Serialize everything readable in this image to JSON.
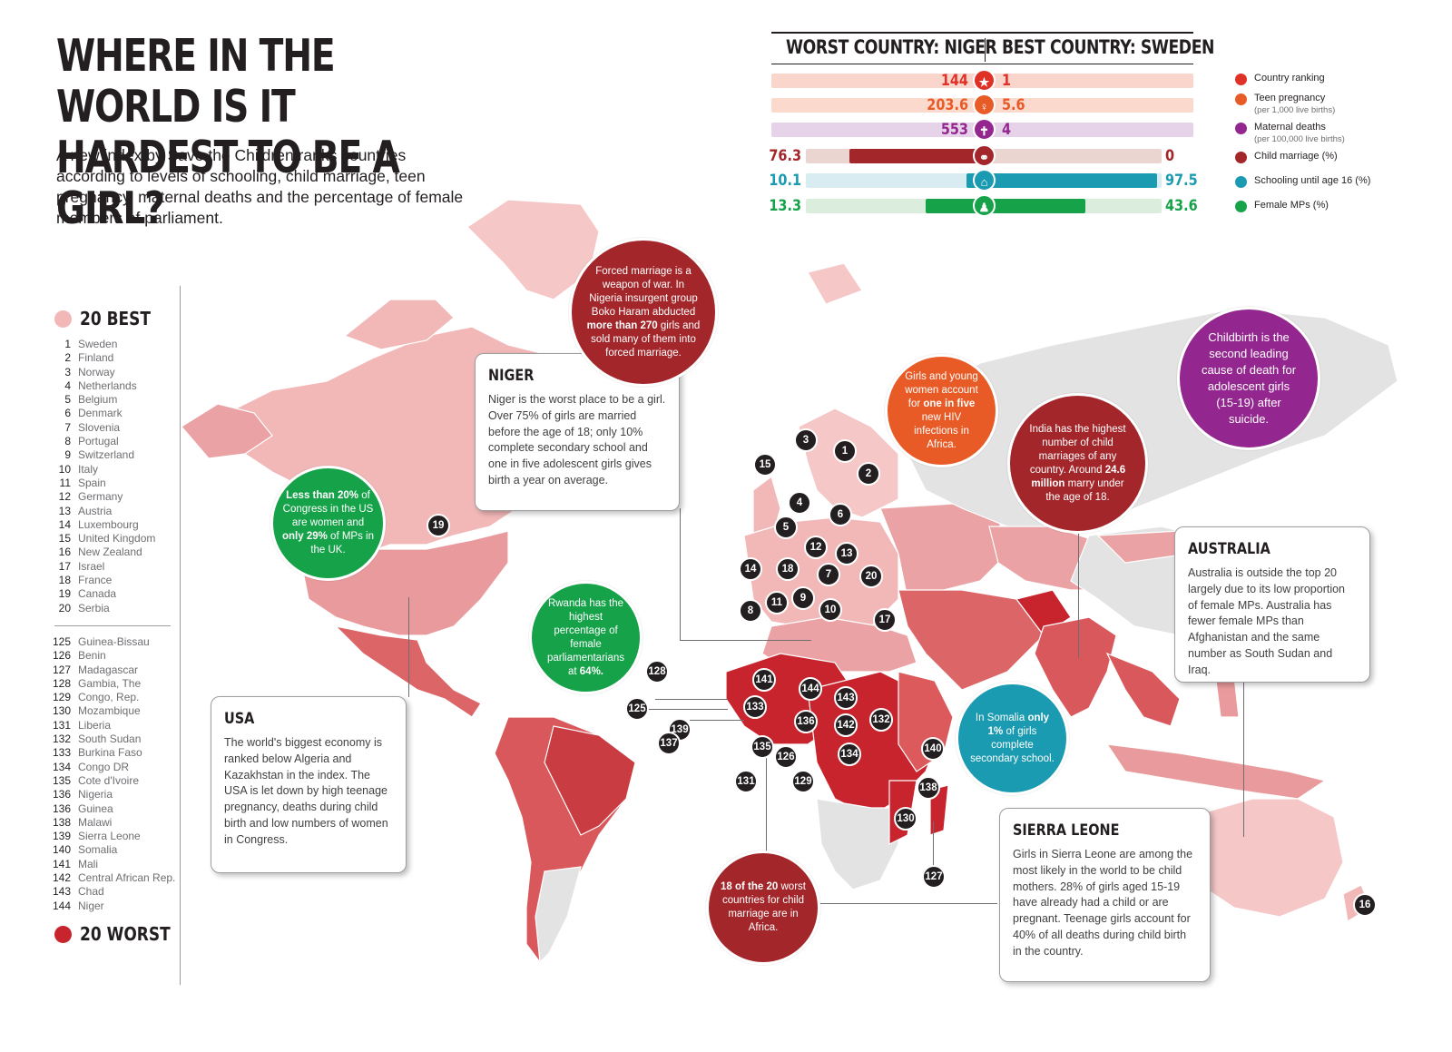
{
  "title_line1": "WHERE IN THE WORLD IS IT",
  "title_line2": "HARDEST TO BE A GIRL?",
  "intro": "A new index by Save the Children ranks countries according to levels of schooling, child marriage, teen pregnancy, maternal deaths and the percentage of female members of parliament.",
  "stats": {
    "worst_label": "WORST COUNTRY: NIGER",
    "best_label": "BEST COUNTRY: SWEDEN",
    "rows": [
      {
        "worst": "144",
        "best": "1",
        "color": "#e03127",
        "icon": "star-icon",
        "glyph": "★"
      },
      {
        "worst": "203.6",
        "best": "5.6",
        "color": "#e85b26",
        "icon": "pregnancy-icon",
        "glyph": "♀"
      },
      {
        "worst": "553",
        "best": "4",
        "color": "#93278f",
        "icon": "maternal-icon",
        "glyph": "✝"
      },
      {
        "worst": "76.3",
        "best": "0",
        "color": "#a3262a",
        "icon": "marriage-icon",
        "glyph": "⚭"
      },
      {
        "worst": "10.1",
        "best": "97.5",
        "color": "#1a9bb1",
        "icon": "school-icon",
        "glyph": "⌂"
      },
      {
        "worst": "13.3",
        "best": "43.6",
        "color": "#16a249",
        "icon": "parliament-icon",
        "glyph": "♟"
      }
    ],
    "fills": {
      "child_marriage": 76.3,
      "schooling_worst": 10.1,
      "schooling_best": 97.5,
      "mps_worst": 13.3,
      "mps_best": 43.6
    },
    "legend": [
      {
        "label": "Country ranking",
        "sub": "",
        "color": "#e03127"
      },
      {
        "label": "Teen pregnancy",
        "sub": "(per 1,000 live births)",
        "color": "#e85b26"
      },
      {
        "label": "Maternal deaths",
        "sub": "(per 100,000 live births)",
        "color": "#93278f"
      },
      {
        "label": "Child marriage (%)",
        "sub": "",
        "color": "#a3262a"
      },
      {
        "label": "Schooling until age 16 (%)",
        "sub": "",
        "color": "#1a9bb1"
      },
      {
        "label": "Female MPs (%)",
        "sub": "",
        "color": "#16a249"
      }
    ]
  },
  "best_heading": "20 BEST",
  "worst_heading": "20 WORST",
  "best_list": [
    {
      "n": "1",
      "c": "Sweden"
    },
    {
      "n": "2",
      "c": "Finland"
    },
    {
      "n": "3",
      "c": "Norway"
    },
    {
      "n": "4",
      "c": "Netherlands"
    },
    {
      "n": "5",
      "c": "Belgium"
    },
    {
      "n": "6",
      "c": "Denmark"
    },
    {
      "n": "7",
      "c": "Slovenia"
    },
    {
      "n": "8",
      "c": "Portugal"
    },
    {
      "n": "9",
      "c": "Switzerland"
    },
    {
      "n": "10",
      "c": "Italy"
    },
    {
      "n": "11",
      "c": "Spain"
    },
    {
      "n": "12",
      "c": "Germany"
    },
    {
      "n": "13",
      "c": "Austria"
    },
    {
      "n": "14",
      "c": "Luxembourg"
    },
    {
      "n": "15",
      "c": "United Kingdom"
    },
    {
      "n": "16",
      "c": "New Zealand"
    },
    {
      "n": "17",
      "c": "Israel"
    },
    {
      "n": "18",
      "c": "France"
    },
    {
      "n": "19",
      "c": "Canada"
    },
    {
      "n": "20",
      "c": "Serbia"
    }
  ],
  "worst_list": [
    {
      "n": "125",
      "c": "Guinea-Bissau"
    },
    {
      "n": "126",
      "c": "Benin"
    },
    {
      "n": "127",
      "c": "Madagascar"
    },
    {
      "n": "128",
      "c": "Gambia, The"
    },
    {
      "n": "129",
      "c": "Congo, Rep."
    },
    {
      "n": "130",
      "c": "Mozambique"
    },
    {
      "n": "131",
      "c": "Liberia"
    },
    {
      "n": "132",
      "c": "South Sudan"
    },
    {
      "n": "133",
      "c": "Burkina Faso"
    },
    {
      "n": "134",
      "c": "Congo DR"
    },
    {
      "n": "135",
      "c": "Cote d'Ivoire"
    },
    {
      "n": "136",
      "c": "Nigeria"
    },
    {
      "n": "136",
      "c": "Guinea"
    },
    {
      "n": "138",
      "c": "Malawi"
    },
    {
      "n": "139",
      "c": "Sierra Leone"
    },
    {
      "n": "140",
      "c": "Somalia"
    },
    {
      "n": "141",
      "c": "Mali"
    },
    {
      "n": "142",
      "c": "Central African Rep."
    },
    {
      "n": "143",
      "c": "Chad"
    },
    {
      "n": "144",
      "c": "Niger"
    }
  ],
  "boxes": {
    "niger": {
      "title": "NIGER",
      "text": "Niger is the worst place to be a girl. Over 75% of girls are married before the age of 18; only 10% complete secondary school and one in five adolescent girls gives birth a year on average."
    },
    "usa": {
      "title": "USA",
      "text": "The world's biggest economy is ranked below Algeria and Kazakhstan in the index. The USA is let down by high teenage pregnancy, deaths during child birth and low numbers of women in Congress."
    },
    "australia": {
      "title": "AUSTRALIA",
      "text": "Australia is outside the top 20 largely due to its low proportion of female MPs. Australia has fewer female MPs than Afghanistan and the same number as South Sudan and Iraq."
    },
    "sierra": {
      "title": "SIERRA LEONE",
      "text": "Girls in Sierra Leone are among the most likely in the world to be child mothers. 28% of girls aged 15-19 have already had a child or are pregnant. Teenage girls account for 40% of all deaths during child birth in the country."
    }
  },
  "circles": {
    "forced": {
      "a": "Forced marriage is a weapon of war. In Nigeria insurgent group Boko Haram abducted ",
      "b": "more than 270",
      "c": " girls and sold many of them into forced marriage."
    },
    "hiv": {
      "a": "Girls and young women account for ",
      "b": "one in five",
      "c": " new HIV infections in Africa."
    },
    "india": {
      "a": "India has the highest number of child marriages of any country. Around ",
      "b": "24.6 million",
      "c": " marry under the age of 18."
    },
    "childbirth": {
      "a": "Childbirth is the second leading cause of death for adolescent girls (15-19) after suicide.",
      "b": "",
      "c": ""
    },
    "congress": {
      "a": "",
      "b": "Less than 20%",
      "c": " of Congress in the US are women and ",
      "d": "only 29%",
      "e": " of MPs in the UK."
    },
    "rwanda": {
      "a": "Rwanda has the highest percentage of female parliamentarians at ",
      "b": "64%.",
      "c": ""
    },
    "somalia": {
      "a": "In Somalia ",
      "b": "only 1%",
      "c": " of girls complete secondary school."
    },
    "africa": {
      "a": "",
      "b": "18 of the 20",
      "c": " worst countries for child marriage are in Africa."
    }
  },
  "ranks": [
    "3",
    "1",
    "2",
    "15",
    "4",
    "6",
    "5",
    "12",
    "13",
    "14",
    "18",
    "7",
    "20",
    "8",
    "11",
    "9",
    "10",
    "17",
    "19",
    "16",
    "128",
    "141",
    "144",
    "143",
    "125",
    "133",
    "136",
    "142",
    "132",
    "139",
    "137",
    "135",
    "126",
    "134",
    "140",
    "131",
    "129",
    "138",
    "130",
    "127"
  ],
  "colors": {
    "best": "#f2b8b8",
    "worst": "#c8242e",
    "mid": "#dc5a5c",
    "land": "#e3e3e3"
  }
}
